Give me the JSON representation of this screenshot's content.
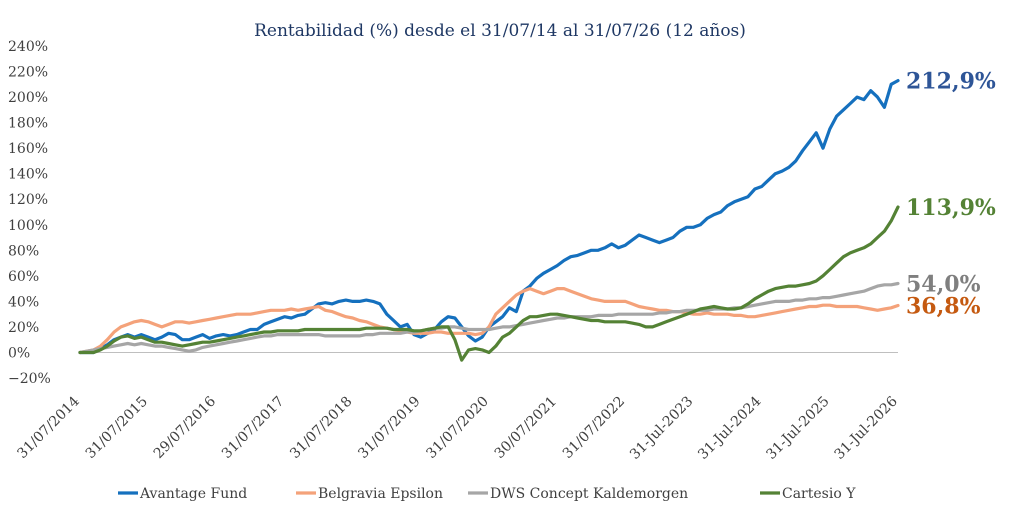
{
  "chart_data": {
    "type": "line",
    "title": "Rentabilidad (%) desde el 31/07/14 al 31/07/26 (12 años)",
    "xlabel": "",
    "ylabel": "",
    "ylim": [
      -20,
      240
    ],
    "y_ticks": [
      "240%",
      "220%",
      "200%",
      "180%",
      "160%",
      "140%",
      "120%",
      "100%",
      "80%",
      "60%",
      "40%",
      "20%",
      "0%",
      "−20%"
    ],
    "x_ticks": [
      "31/07/2014",
      "31/07/2015",
      "29/07/2016",
      "31/07/2017",
      "31/07/2018",
      "31/07/2019",
      "31/07/2020",
      "30/07/2021",
      "31/07/2022",
      "31-Jul-2023",
      "31-Jul-2024",
      "31-Jul-2025",
      "31-Jul-2026"
    ],
    "grid": false,
    "legend_position": "bottom",
    "series": [
      {
        "name": "Avantage Fund",
        "color": "#1570be",
        "end_label": "212,9%",
        "end_label_color": "#2e5597",
        "values": [
          0,
          0,
          0,
          3,
          6,
          10,
          12,
          14,
          12,
          14,
          12,
          10,
          12,
          15,
          14,
          10,
          10,
          12,
          14,
          11,
          13,
          14,
          13,
          14,
          16,
          18,
          18,
          22,
          24,
          26,
          28,
          27,
          29,
          30,
          34,
          38,
          39,
          38,
          40,
          41,
          40,
          40,
          41,
          40,
          38,
          30,
          25,
          20,
          22,
          14,
          12,
          15,
          18,
          24,
          28,
          27,
          20,
          13,
          9,
          12,
          20,
          24,
          28,
          35,
          32,
          48,
          52,
          58,
          62,
          65,
          68,
          72,
          75,
          76,
          78,
          80,
          80,
          82,
          85,
          82,
          84,
          88,
          92,
          90,
          88,
          86,
          88,
          90,
          95,
          98,
          98,
          100,
          105,
          108,
          110,
          115,
          118,
          120,
          122,
          128,
          130,
          135,
          140,
          142,
          145,
          150,
          158,
          165,
          172,
          160,
          175,
          185,
          190,
          195,
          200,
          198,
          205,
          200,
          192,
          210,
          212.9
        ]
      },
      {
        "name": "Belgravia Epsilon",
        "color": "#f4a27a",
        "end_label": "36,8%",
        "end_label_color": "#c55a11",
        "values": [
          0,
          1,
          2,
          5,
          10,
          16,
          20,
          22,
          24,
          25,
          24,
          22,
          20,
          22,
          24,
          24,
          23,
          24,
          25,
          26,
          27,
          28,
          29,
          30,
          30,
          30,
          31,
          32,
          33,
          33,
          33,
          34,
          33,
          34,
          35,
          36,
          33,
          32,
          30,
          28,
          27,
          25,
          24,
          22,
          20,
          19,
          18,
          17,
          16,
          15,
          15,
          15,
          16,
          16,
          15,
          15,
          15,
          15,
          14,
          15,
          20,
          30,
          35,
          40,
          45,
          48,
          50,
          48,
          46,
          48,
          50,
          50,
          48,
          46,
          44,
          42,
          41,
          40,
          40,
          40,
          40,
          38,
          36,
          35,
          34,
          33,
          33,
          32,
          32,
          31,
          30,
          30,
          31,
          30,
          30,
          30,
          29,
          29,
          28,
          28,
          29,
          30,
          31,
          32,
          33,
          34,
          35,
          36,
          36,
          37,
          37,
          36,
          36,
          36,
          36,
          35,
          34,
          33,
          34,
          35,
          36.8
        ]
      },
      {
        "name": "DWS Concept Kaldemorgen",
        "color": "#a6a6a6",
        "end_label": "54,0%",
        "end_label_color": "#7f7f7f",
        "values": [
          0,
          1,
          2,
          3,
          4,
          5,
          6,
          7,
          6,
          7,
          6,
          5,
          5,
          4,
          3,
          2,
          1,
          2,
          4,
          5,
          6,
          7,
          8,
          9,
          10,
          11,
          12,
          13,
          13,
          14,
          14,
          14,
          14,
          14,
          14,
          14,
          13,
          13,
          13,
          13,
          13,
          13,
          14,
          14,
          15,
          15,
          15,
          15,
          16,
          16,
          17,
          18,
          19,
          19,
          20,
          20,
          19,
          18,
          18,
          18,
          18,
          19,
          20,
          20,
          21,
          22,
          23,
          24,
          25,
          26,
          27,
          27,
          28,
          28,
          28,
          28,
          29,
          29,
          29,
          30,
          30,
          30,
          30,
          30,
          30,
          31,
          31,
          32,
          32,
          33,
          33,
          33,
          33,
          34,
          34,
          34,
          35,
          35,
          36,
          37,
          38,
          39,
          40,
          40,
          40,
          41,
          41,
          42,
          42,
          43,
          43,
          44,
          45,
          46,
          47,
          48,
          50,
          52,
          53,
          53,
          54.0
        ]
      },
      {
        "name": "Cartesio Y",
        "color": "#548235",
        "end_label": "113,9%",
        "end_label_color": "#548235",
        "values": [
          0,
          0,
          0,
          2,
          5,
          9,
          12,
          13,
          11,
          12,
          10,
          8,
          8,
          7,
          6,
          5,
          6,
          7,
          8,
          8,
          9,
          10,
          11,
          12,
          13,
          14,
          15,
          16,
          16,
          17,
          17,
          17,
          17,
          18,
          18,
          18,
          18,
          18,
          18,
          18,
          18,
          18,
          19,
          19,
          19,
          19,
          18,
          18,
          18,
          17,
          17,
          18,
          19,
          20,
          20,
          10,
          -6,
          2,
          3,
          2,
          0,
          5,
          12,
          15,
          20,
          25,
          28,
          28,
          29,
          30,
          30,
          29,
          28,
          27,
          26,
          25,
          25,
          24,
          24,
          24,
          24,
          23,
          22,
          20,
          20,
          22,
          24,
          26,
          28,
          30,
          32,
          34,
          35,
          36,
          35,
          34,
          34,
          35,
          38,
          42,
          45,
          48,
          50,
          51,
          52,
          52,
          53,
          54,
          56,
          60,
          65,
          70,
          75,
          78,
          80,
          82,
          85,
          90,
          95,
          103,
          113.9
        ]
      }
    ]
  }
}
